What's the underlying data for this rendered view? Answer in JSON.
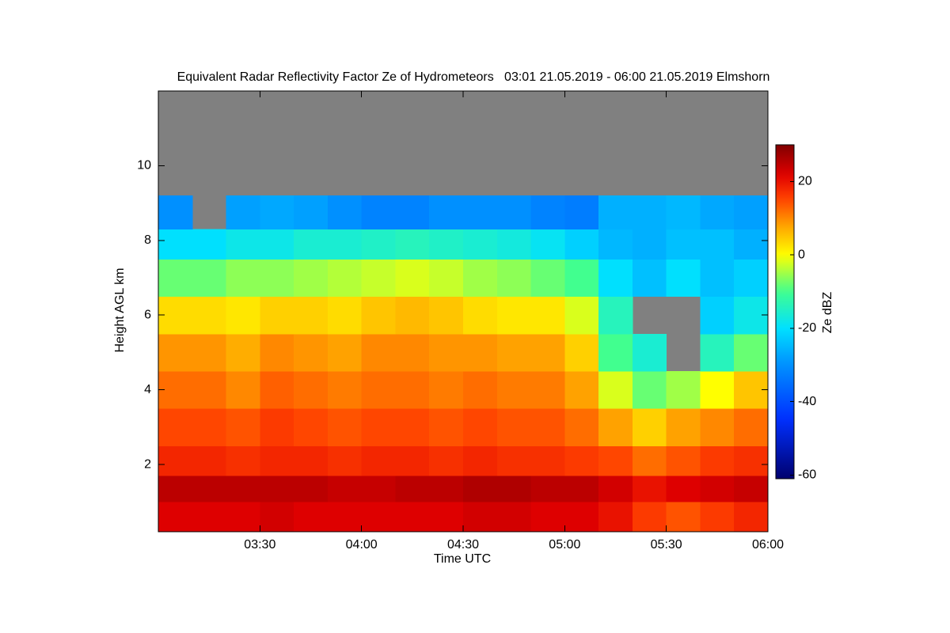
{
  "chart_data": {
    "type": "heatmap",
    "title": "Equivalent Radar Reflectivity Factor Ze of Hydrometeors   03:01 21.05.2019 - 06:00 21.05.2019 Elmshorn",
    "xlabel": "Time UTC",
    "ylabel": "Height AGL km",
    "x_bins": [
      180,
      190,
      200,
      210,
      220,
      230,
      240,
      250,
      260,
      270,
      280,
      290,
      300,
      310,
      320,
      330,
      340,
      350,
      360
    ],
    "y_bins": [
      0.2,
      1.0,
      1.7,
      2.5,
      3.5,
      4.5,
      5.5,
      6.5,
      7.5,
      8.3,
      9.2,
      12
    ],
    "z": [
      [
        22,
        22,
        22,
        23,
        22,
        22,
        22,
        22,
        22,
        23,
        23,
        22,
        22,
        20,
        16,
        14,
        16,
        18
      ],
      [
        25,
        25,
        25,
        25,
        25,
        24,
        24,
        25,
        25,
        26,
        26,
        25,
        25,
        23,
        20,
        22,
        23,
        24
      ],
      [
        18,
        18,
        17,
        18,
        18,
        17,
        18,
        18,
        17,
        18,
        17,
        17,
        16,
        15,
        12,
        14,
        16,
        17
      ],
      [
        15,
        15,
        14,
        16,
        15,
        14,
        15,
        15,
        14,
        15,
        14,
        14,
        12,
        8,
        4,
        8,
        10,
        12
      ],
      [
        12,
        12,
        10,
        13,
        12,
        11,
        12,
        12,
        11,
        12,
        11,
        11,
        8,
        -2,
        -8,
        -5,
        0,
        5
      ],
      [
        9,
        9,
        7,
        10,
        9,
        8,
        10,
        10,
        9,
        9,
        8,
        8,
        4,
        -10,
        -16,
        null,
        -14,
        -8
      ],
      [
        3,
        3,
        2,
        4,
        4,
        3,
        5,
        6,
        5,
        3,
        2,
        2,
        -2,
        -14,
        null,
        null,
        -22,
        -18
      ],
      [
        -8,
        -8,
        -6,
        -6,
        -5,
        -4,
        -3,
        -2,
        -3,
        -5,
        -6,
        -8,
        -10,
        -20,
        -24,
        -20,
        -24,
        -22
      ],
      [
        -20,
        -20,
        -18,
        -18,
        -16,
        -16,
        -15,
        -14,
        -15,
        -16,
        -17,
        -19,
        -22,
        -25,
        -26,
        -24,
        -24,
        -26
      ],
      [
        -30,
        null,
        -28,
        -27,
        -28,
        -30,
        -32,
        -32,
        -30,
        -30,
        -30,
        -32,
        -33,
        -26,
        -26,
        -25,
        -27,
        -28
      ],
      [
        null,
        null,
        null,
        null,
        null,
        null,
        null,
        null,
        null,
        null,
        null,
        null,
        null,
        null,
        null,
        null,
        null,
        null
      ]
    ],
    "xlim": [
      180,
      360
    ],
    "xticks": [
      {
        "value": 210,
        "label": "03:30"
      },
      {
        "value": 240,
        "label": "04:00"
      },
      {
        "value": 270,
        "label": "04:30"
      },
      {
        "value": 300,
        "label": "05:00"
      },
      {
        "value": 330,
        "label": "05:30"
      },
      {
        "value": 360,
        "label": "06:00"
      }
    ],
    "ylim": [
      0.2,
      12
    ],
    "yticks": [
      2,
      4,
      6,
      8,
      10
    ],
    "colormap": "jet",
    "nan_color": "#808080",
    "colorbar": {
      "label": "Ze dBZ",
      "lim": [
        -61,
        30
      ],
      "ticks": [
        20,
        0,
        -20,
        -40,
        -60
      ]
    }
  }
}
